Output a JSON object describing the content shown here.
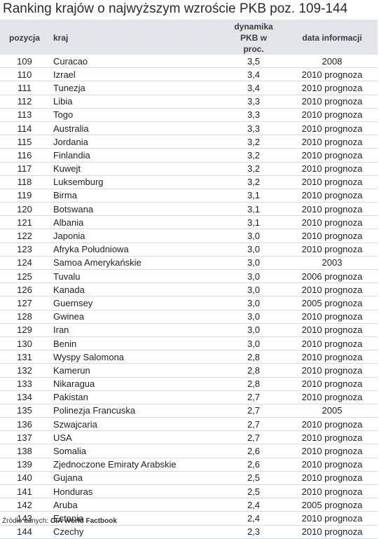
{
  "title": "Ranking krajów o najwyższym wzroście PKB poz. 109-144",
  "headers": {
    "pozycja": "pozycja",
    "kraj": "kraj",
    "dynamika": [
      "dynamika",
      "PKB w",
      "proc."
    ],
    "data": "data informacji"
  },
  "rows": [
    {
      "pos": "109",
      "kraj": "Curacao",
      "dyn": "3,5",
      "data": "2008"
    },
    {
      "pos": "110",
      "kraj": "Izrael",
      "dyn": "3,4",
      "data": "2010 prognoza"
    },
    {
      "pos": "111",
      "kraj": "Tunezja",
      "dyn": "3,4",
      "data": "2010 prognoza"
    },
    {
      "pos": "112",
      "kraj": "Libia",
      "dyn": "3,3",
      "data": "2010 prognoza"
    },
    {
      "pos": "113",
      "kraj": "Togo",
      "dyn": "3,3",
      "data": "2010 prognoza"
    },
    {
      "pos": "114",
      "kraj": "Australia",
      "dyn": "3,3",
      "data": "2010 prognoza"
    },
    {
      "pos": "115",
      "kraj": "Jordania",
      "dyn": "3,2",
      "data": "2010 prognoza"
    },
    {
      "pos": "116",
      "kraj": "Finlandia",
      "dyn": "3,2",
      "data": "2010 prognoza"
    },
    {
      "pos": "117",
      "kraj": "Kuwejt",
      "dyn": "3,2",
      "data": "2010 prognoza"
    },
    {
      "pos": "118",
      "kraj": "Luksemburg",
      "dyn": "3,2",
      "data": "2010 prognoza"
    },
    {
      "pos": "119",
      "kraj": "Birma",
      "dyn": "3,1",
      "data": "2010 prognoza"
    },
    {
      "pos": "120",
      "kraj": "Botswana",
      "dyn": "3,1",
      "data": "2010 prognoza"
    },
    {
      "pos": "121",
      "kraj": "Albania",
      "dyn": "3,1",
      "data": "2010 prognoza"
    },
    {
      "pos": "122",
      "kraj": "Japonia",
      "dyn": "3,0",
      "data": "2010 prognoza"
    },
    {
      "pos": "123",
      "kraj": "Afryka Południowa",
      "dyn": "3,0",
      "data": "2010 prognoza"
    },
    {
      "pos": "124",
      "kraj": "Samoa Amerykańskie",
      "dyn": "3,0",
      "data": "2003"
    },
    {
      "pos": "125",
      "kraj": "Tuvalu",
      "dyn": "3,0",
      "data": "2006 prognoza"
    },
    {
      "pos": "126",
      "kraj": "Kanada",
      "dyn": "3,0",
      "data": "2010 prognoza"
    },
    {
      "pos": "127",
      "kraj": "Guernsey",
      "dyn": "3,0",
      "data": "2005 prognoza"
    },
    {
      "pos": "128",
      "kraj": "Gwinea",
      "dyn": "3,0",
      "data": "2010 prognoza"
    },
    {
      "pos": "129",
      "kraj": "Iran",
      "dyn": "3,0",
      "data": "2010 prognoza"
    },
    {
      "pos": "130",
      "kraj": "Benin",
      "dyn": "3,0",
      "data": "2010 prognoza"
    },
    {
      "pos": "131",
      "kraj": "Wyspy Salomona",
      "dyn": "2,8",
      "data": "2010 prognoza"
    },
    {
      "pos": "132",
      "kraj": "Kamerun",
      "dyn": "2,8",
      "data": "2010 prognoza"
    },
    {
      "pos": "133",
      "kraj": "Nikaragua",
      "dyn": "2,8",
      "data": "2010 prognoza"
    },
    {
      "pos": "134",
      "kraj": "Pakistan",
      "dyn": "2,7",
      "data": "2010 prognoza"
    },
    {
      "pos": "135",
      "kraj": "Polinezja Francuska",
      "dyn": "2,7",
      "data": "2005"
    },
    {
      "pos": "136",
      "kraj": "Szwajcaria",
      "dyn": "2,7",
      "data": "2010 prognoza"
    },
    {
      "pos": "137",
      "kraj": "USA",
      "dyn": "2,7",
      "data": "2010 prognoza"
    },
    {
      "pos": "138",
      "kraj": "Somalia",
      "dyn": "2,6",
      "data": "2010 prognoza"
    },
    {
      "pos": "139",
      "kraj": "Zjednoczone Emiraty Arabskie",
      "dyn": "2,6",
      "data": "2010 prognoza"
    },
    {
      "pos": "140",
      "kraj": "Gujana",
      "dyn": "2,5",
      "data": "2010 prognoza"
    },
    {
      "pos": "141",
      "kraj": "Honduras",
      "dyn": "2,5",
      "data": "2010 prognoza"
    },
    {
      "pos": "142",
      "kraj": "Aruba",
      "dyn": "2,4",
      "data": "2005 prognoza"
    },
    {
      "pos": "143",
      "kraj": "Estonia",
      "dyn": "2,4",
      "data": "2010 prognoza"
    },
    {
      "pos": "144",
      "kraj": "Czechy",
      "dyn": "2,3",
      "data": "2010 prognoza"
    }
  ],
  "source": {
    "label": "Źródło danych:",
    "value": "CIA World Factbook"
  },
  "colors": {
    "header_bg": "#e2e5e9",
    "row_border": "#d3dae3"
  }
}
